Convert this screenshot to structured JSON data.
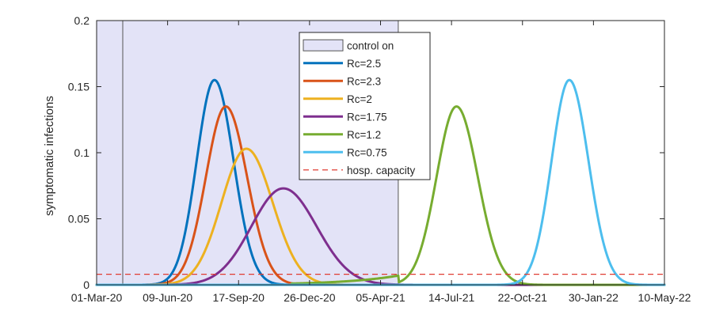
{
  "chart_data": {
    "type": "line",
    "title": "",
    "xlabel": "",
    "ylabel": "symptomatic infections",
    "ylim": [
      0,
      0.2
    ],
    "xlim": [
      "2020-03-01",
      "2022-05-10"
    ],
    "grid": false,
    "legend_position": "top-center",
    "x_ticks": [
      "01-Mar-20",
      "09-Jun-20",
      "17-Sep-20",
      "26-Dec-20",
      "05-Apr-21",
      "14-Jul-21",
      "22-Oct-21",
      "30-Jan-22",
      "10-May-22"
    ],
    "y_ticks": [
      "0",
      "0.05",
      "0.1",
      "0.15",
      "0.2"
    ],
    "control_period": {
      "label": "control on",
      "start": "2020-03-01",
      "end": "2021-04-30",
      "color": "#e3e3f7"
    },
    "series": [
      {
        "name": "Rc=2.5",
        "color": "#0072BD",
        "peak_date": "2020-08-14",
        "peak": 0.155,
        "width_left": 25,
        "width_right": 27
      },
      {
        "name": "Rc=2.3",
        "color": "#D95319",
        "peak_date": "2020-08-30",
        "peak": 0.135,
        "width_left": 28,
        "width_right": 30
      },
      {
        "name": "Rc=2",
        "color": "#EDB120",
        "peak_date": "2020-09-28",
        "peak": 0.103,
        "width_left": 35,
        "width_right": 37
      },
      {
        "name": "Rc=1.75",
        "color": "#7E2F8E",
        "peak_date": "2020-11-19",
        "peak": 0.073,
        "width_left": 45,
        "width_right": 47
      },
      {
        "name": "Rc=1.2",
        "color": "#77AC30",
        "peak_date": "2021-07-21",
        "peak": 0.135,
        "width_left": 28,
        "width_right": 30,
        "preceding_growth": {
          "from_date": "2020-12-01",
          "to_date": "2021-04-30",
          "start_value": 0.001,
          "end_value": 0.007
        }
      },
      {
        "name": "Rc=0.75",
        "color": "#4DBEEE",
        "peak_date": "2021-12-27",
        "peak": 0.155,
        "width_left": 25,
        "width_right": 27
      },
      {
        "name": "hosp. capacity",
        "color": "#E03C32",
        "value": 0.008,
        "dashed": true
      }
    ]
  }
}
